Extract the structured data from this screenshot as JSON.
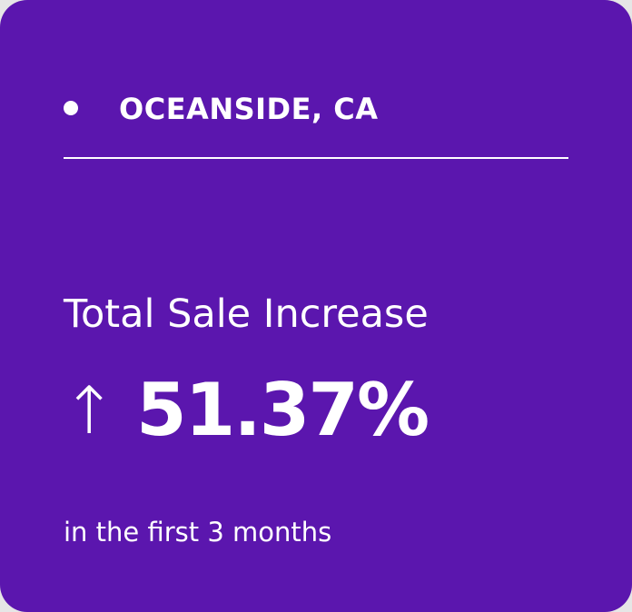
{
  "card": {
    "location": "OCEANSIDE, CA",
    "heading": "Total Sale Increase",
    "arrow": "↑",
    "value": "51.37%",
    "note": "in the first 3 months"
  }
}
